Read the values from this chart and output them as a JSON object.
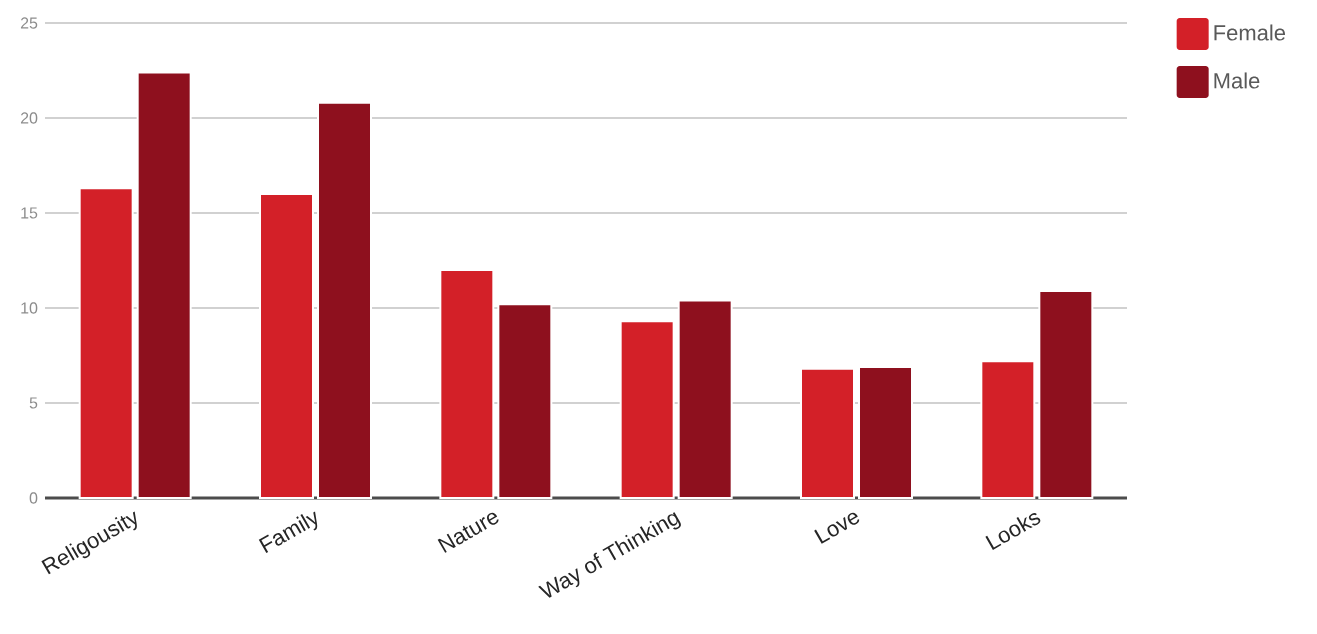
{
  "chart_data": {
    "type": "bar",
    "categories": [
      "Religousity",
      "Family",
      "Nature",
      "Way of Thinking",
      "Love",
      "Looks"
    ],
    "series": [
      {
        "name": "Female",
        "color": "#d32028",
        "values": [
          16.3,
          16.0,
          12.0,
          9.3,
          6.8,
          7.2
        ]
      },
      {
        "name": "Male",
        "color": "#8e101e",
        "values": [
          22.4,
          20.8,
          10.2,
          10.4,
          6.9,
          10.9
        ]
      }
    ],
    "ylim": [
      0,
      25
    ],
    "yticks": [
      0,
      5,
      10,
      15,
      20,
      25
    ],
    "grid": "y",
    "legend": "top right"
  }
}
